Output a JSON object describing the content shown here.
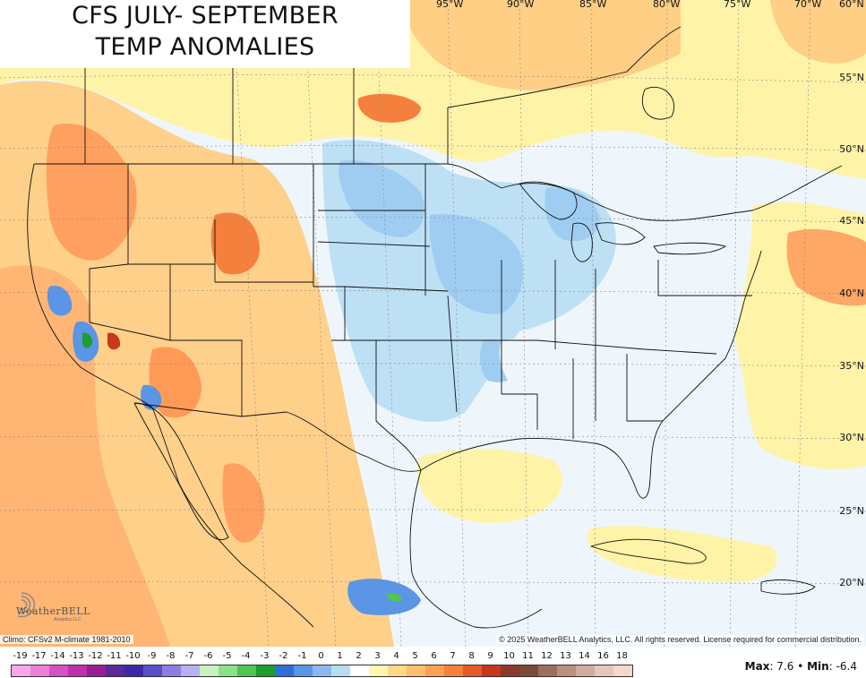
{
  "title": {
    "line1": "CFS JULY- SEPTEMBER",
    "line2": "TEMP ANOMALIES"
  },
  "longitude_labels": [
    "95°W",
    "90°W",
    "85°W",
    "80°W",
    "75°W",
    "70°W",
    "60°N"
  ],
  "latitude_labels": [
    "55°N",
    "50°N",
    "45°N",
    "40°N",
    "35°N",
    "30°N",
    "25°N",
    "20°N"
  ],
  "climo_note": "Climo: CFSv2 M-climate 1981-2010",
  "copyright": "© 2025 WeatherBELL Analytics, LLC. All rights reserved. License required for commercial distribution.",
  "logo": {
    "name": "WeatherBELL",
    "sub": "Analytics LLC"
  },
  "legend": {
    "labels": [
      "-19",
      "-17",
      "-14",
      "-13",
      "-12",
      "-11",
      "-10",
      "-9",
      "-8",
      "-7",
      "-6",
      "-5",
      "-4",
      "-3",
      "-2",
      "-1",
      "0",
      "1",
      "2",
      "3",
      "4",
      "5",
      "6",
      "7",
      "8",
      "9",
      "10",
      "11",
      "12",
      "13",
      "14",
      "16",
      "18"
    ],
    "colors": [
      "#f7a8e8",
      "#ec7fd8",
      "#d94fc4",
      "#c02fb0",
      "#9a1d96",
      "#5a2a99",
      "#3b2aa8",
      "#5a4fc9",
      "#8a7fe0",
      "#b9b0f0",
      "#c9f0c0",
      "#8fe08a",
      "#4fc64f",
      "#1e9e2e",
      "#2f6fd8",
      "#5a95e6",
      "#8ab8f0",
      "#b8dcf6",
      "#ffffff",
      "#fff7b0",
      "#ffd98a",
      "#ffbf6e",
      "#ffa052",
      "#f5803d",
      "#e65a2a",
      "#c8381c",
      "#8a3a2a",
      "#7a4a3a",
      "#9c6e5c",
      "#b8907e",
      "#d0aca0",
      "#e6c6bc",
      "#f4d8d0"
    ]
  },
  "stats": {
    "max_label": "Max",
    "max": "7.6",
    "min_label": "Min",
    "min": "-6.4"
  }
}
